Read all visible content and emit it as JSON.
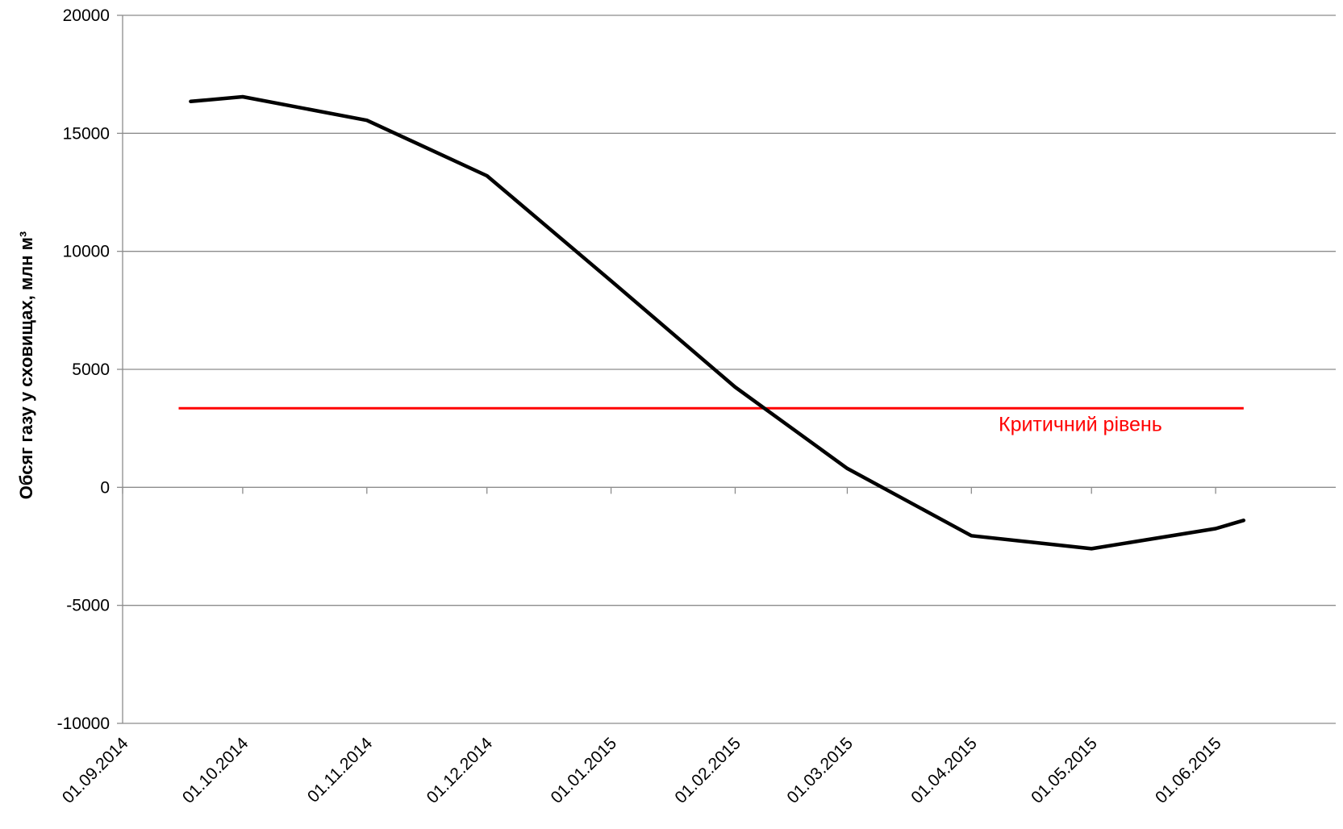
{
  "chart_data": {
    "type": "line",
    "title": "",
    "xlabel": "",
    "ylabel": "Обсяг газу у сховищах, млн м³",
    "ylim": [
      -10000,
      20000
    ],
    "yticks": [
      -10000,
      -5000,
      0,
      5000,
      10000,
      15000,
      20000
    ],
    "xlim": [
      "01.09.2014",
      "01.07.2015"
    ],
    "xticks": [
      "01.09.2014",
      "01.10.2014",
      "01.11.2014",
      "01.12.2014",
      "01.01.2015",
      "01.02.2015",
      "01.03.2015",
      "01.04.2015",
      "01.05.2015",
      "01.06.2015"
    ],
    "grid": true,
    "series": [
      {
        "color": "#000000",
        "x": [
          "18.09.2014",
          "01.10.2014",
          "01.11.2014",
          "01.12.2014",
          "01.01.2015",
          "01.02.2015",
          "01.03.2015",
          "01.04.2015",
          "01.05.2015",
          "01.06.2015",
          "08.06.2015"
        ],
        "y": [
          16350,
          16550,
          15550,
          13200,
          8750,
          4250,
          800,
          -2050,
          -2600,
          -1750,
          -1400
        ]
      }
    ],
    "reference_line": {
      "label": "Критичний рівень",
      "y": 3350,
      "x_start": "15.09.2014",
      "x_end": "08.06.2015",
      "color": "#ff0000"
    }
  }
}
